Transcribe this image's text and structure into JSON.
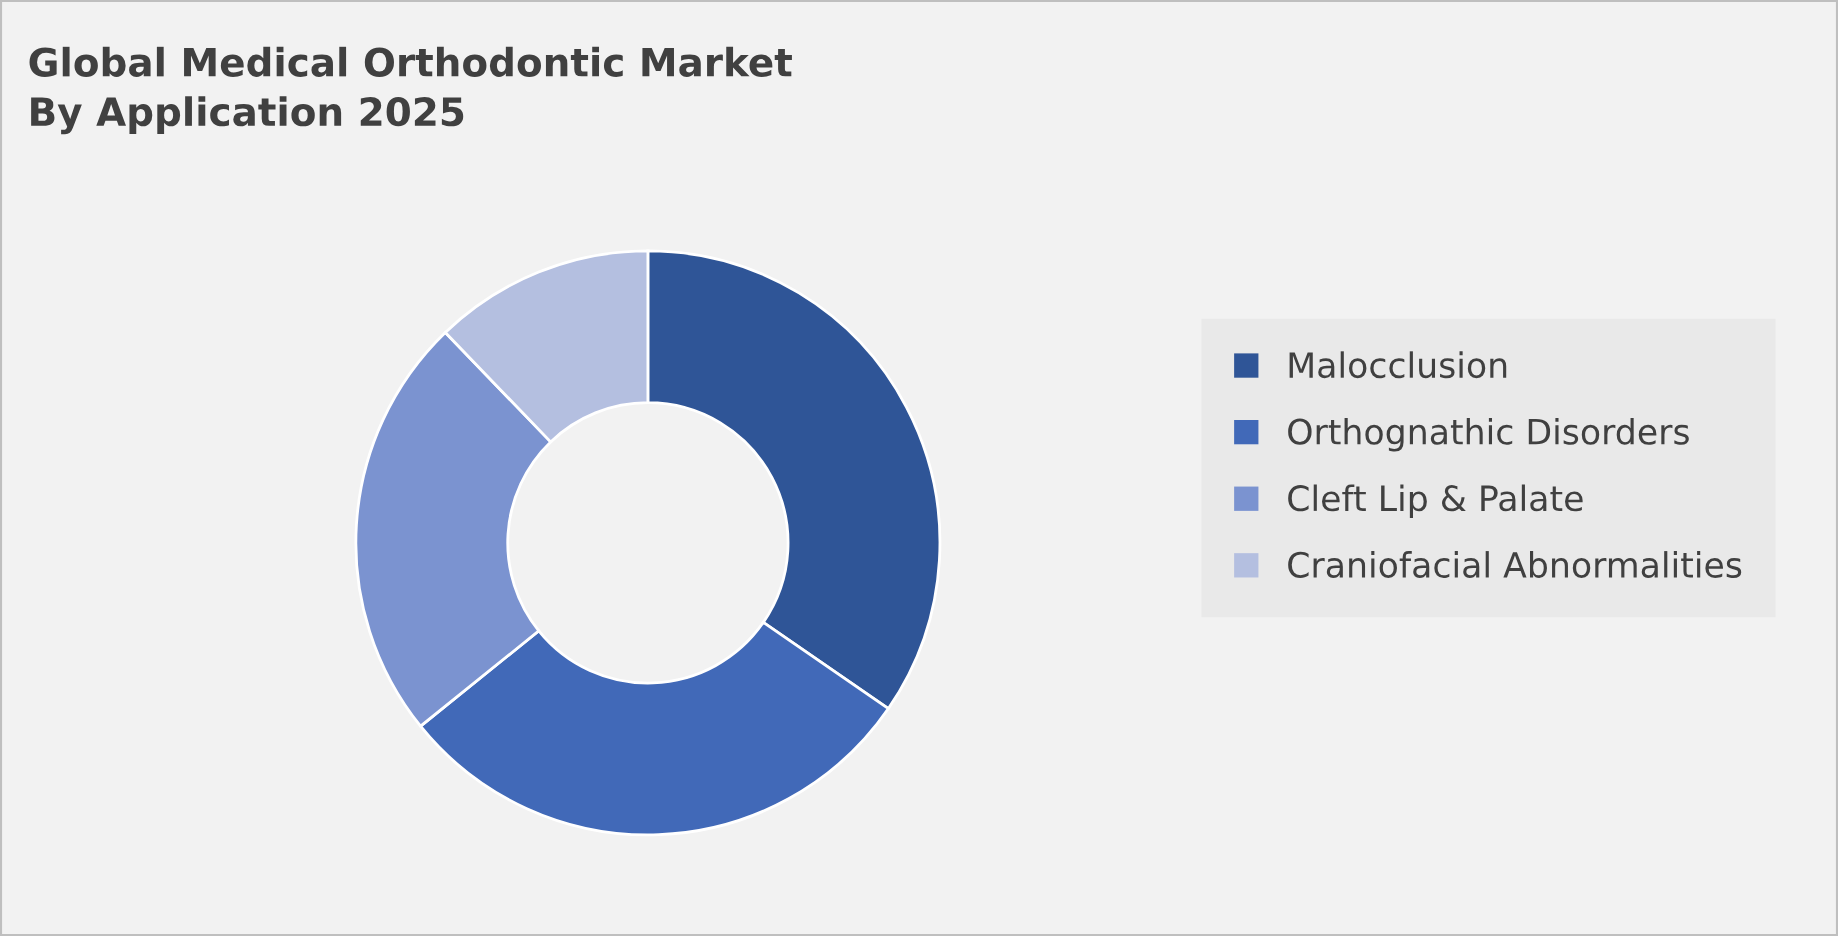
{
  "chart_data": {
    "type": "donut",
    "title": "Global Medical Orthodontic Market\nBy Application 2025",
    "categories": [
      "Malocclusion",
      "Orthognathic Disorders",
      "Cleft Lip & Palate",
      "Craniofacial Abnormalities"
    ],
    "values": [
      34.6,
      29.6,
      23.6,
      12.2
    ],
    "colors": [
      "#2f5597",
      "#4169b8",
      "#7b93d0",
      "#b4bfe0"
    ],
    "legend": "right"
  }
}
